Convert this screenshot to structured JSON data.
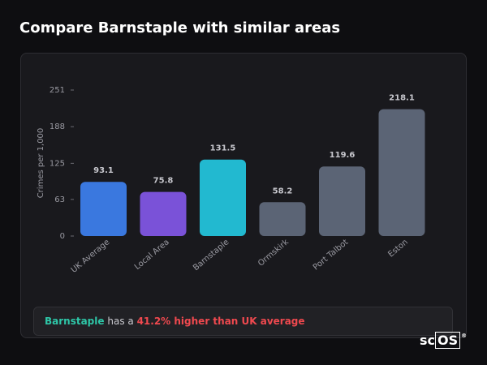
{
  "chart_data": {
    "type": "bar",
    "title": "Compare Barnstaple with similar areas",
    "y_label": "Crimes per 1,000",
    "categories": [
      "UK Average",
      "Local Area",
      "Barnstaple",
      "Ormskirk",
      "Port Talbot",
      "Eston"
    ],
    "values": [
      93.1,
      75.8,
      131.5,
      58.2,
      119.6,
      218.1
    ],
    "colors": [
      "#3a78df",
      "#7a52d8",
      "#22b9d0",
      "#5b6475",
      "#5b6475",
      "#5b6475"
    ],
    "ylim": [
      0,
      251
    ],
    "yticks": [
      0,
      63,
      125,
      188,
      251
    ],
    "grid": false
  },
  "summary": {
    "area": "Barnstaple",
    "middle": "has a",
    "highlight": "41.2% higher than UK average"
  },
  "logo": {
    "prefix": "sc",
    "boxed": "OS",
    "mark": "®"
  }
}
